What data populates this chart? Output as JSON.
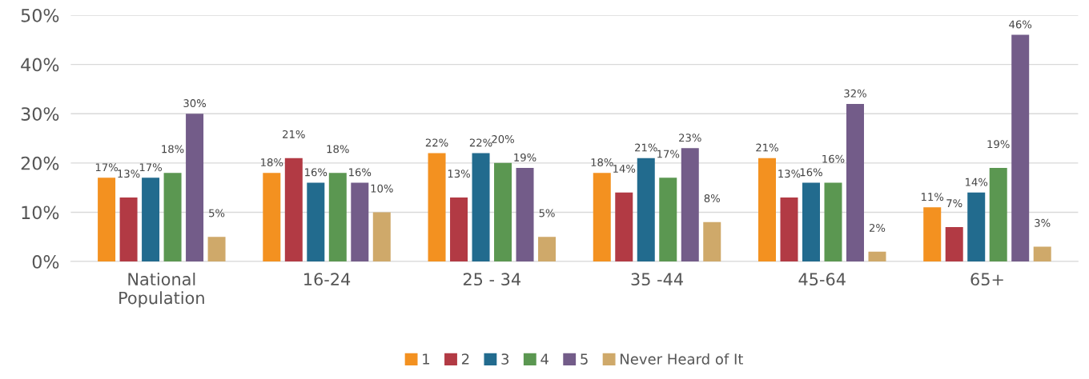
{
  "chart_data": {
    "type": "bar",
    "categories": [
      "National\nPopulation",
      "16-24",
      "25 - 34",
      "35 -44",
      "45-64",
      "65+"
    ],
    "series": [
      {
        "name": "1",
        "color": "#f39120",
        "values": [
          17,
          18,
          22,
          18,
          21,
          11
        ],
        "value_labels": [
          "17%",
          "18%",
          "22%",
          "18%",
          "21%",
          "11%"
        ]
      },
      {
        "name": "2",
        "color": "#b23a44",
        "values": [
          13,
          21,
          13,
          14,
          13,
          7
        ],
        "value_labels": [
          "13%",
          "21%",
          "13%",
          "14%",
          "13%",
          "7%"
        ]
      },
      {
        "name": "3",
        "color": "#226b8e",
        "values": [
          17,
          16,
          22,
          21,
          16,
          14
        ],
        "value_labels": [
          "17%",
          "16%",
          "22%",
          "21%",
          "16%",
          "14%"
        ]
      },
      {
        "name": "4",
        "color": "#5b9751",
        "values": [
          18,
          18,
          20,
          17,
          16,
          19
        ],
        "value_labels": [
          "18%",
          "18%",
          "20%",
          "17%",
          "16%",
          "19%"
        ]
      },
      {
        "name": "5",
        "color": "#735c89",
        "values": [
          30,
          16,
          19,
          23,
          32,
          46
        ],
        "value_labels": [
          "30%",
          "16%",
          "19%",
          "23%",
          "32%",
          "46%"
        ]
      },
      {
        "name": "Never Heard of It",
        "color": "#cfa96a",
        "values": [
          5,
          10,
          5,
          8,
          2,
          3
        ],
        "value_labels": [
          "5%",
          "10%",
          "5%",
          "8%",
          "2%",
          "3%"
        ]
      }
    ],
    "ylim": [
      0,
      50
    ],
    "yticks": [
      {
        "value": 0,
        "label": "0%"
      },
      {
        "value": 10,
        "label": "10%"
      },
      {
        "value": 20,
        "label": "20%"
      },
      {
        "value": 30,
        "label": "30%"
      },
      {
        "value": 40,
        "label": "40%"
      },
      {
        "value": 50,
        "label": "50%"
      }
    ],
    "grid": "y",
    "legend": "bottom"
  }
}
